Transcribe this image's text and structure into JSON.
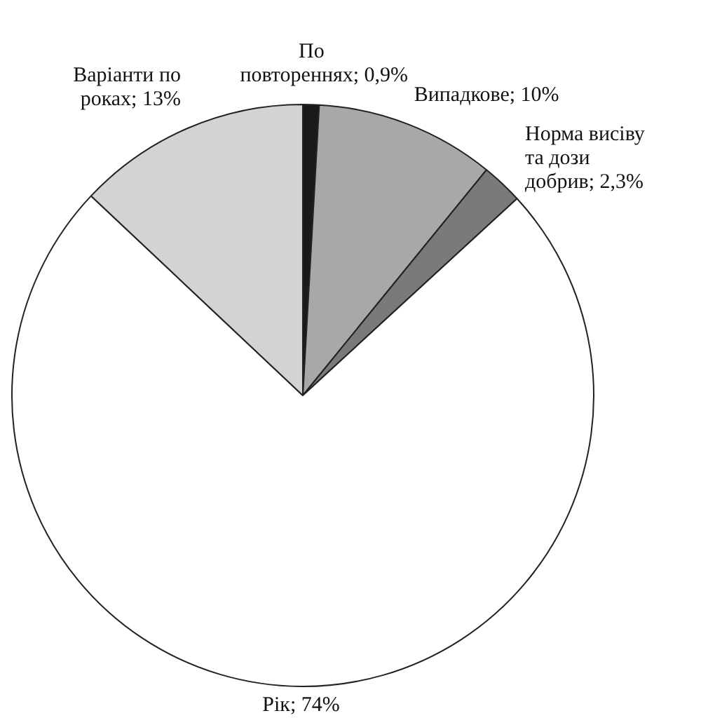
{
  "chart_data": {
    "type": "pie",
    "categories": [
      "По повтореннях",
      "Випадкове",
      "Норма висіву та дози добрив",
      "Рік",
      "Варіанти по роках"
    ],
    "values": [
      0.9,
      10,
      2.3,
      74,
      13
    ],
    "value_labels": [
      "0,9%",
      "10%",
      "2,3%",
      "74%",
      "13%"
    ],
    "colors": [
      "#1a1a1a",
      "#a8a8a8",
      "#7a7a7a",
      "#ffffff",
      "#d3d3d3"
    ],
    "legend": false
  }
}
